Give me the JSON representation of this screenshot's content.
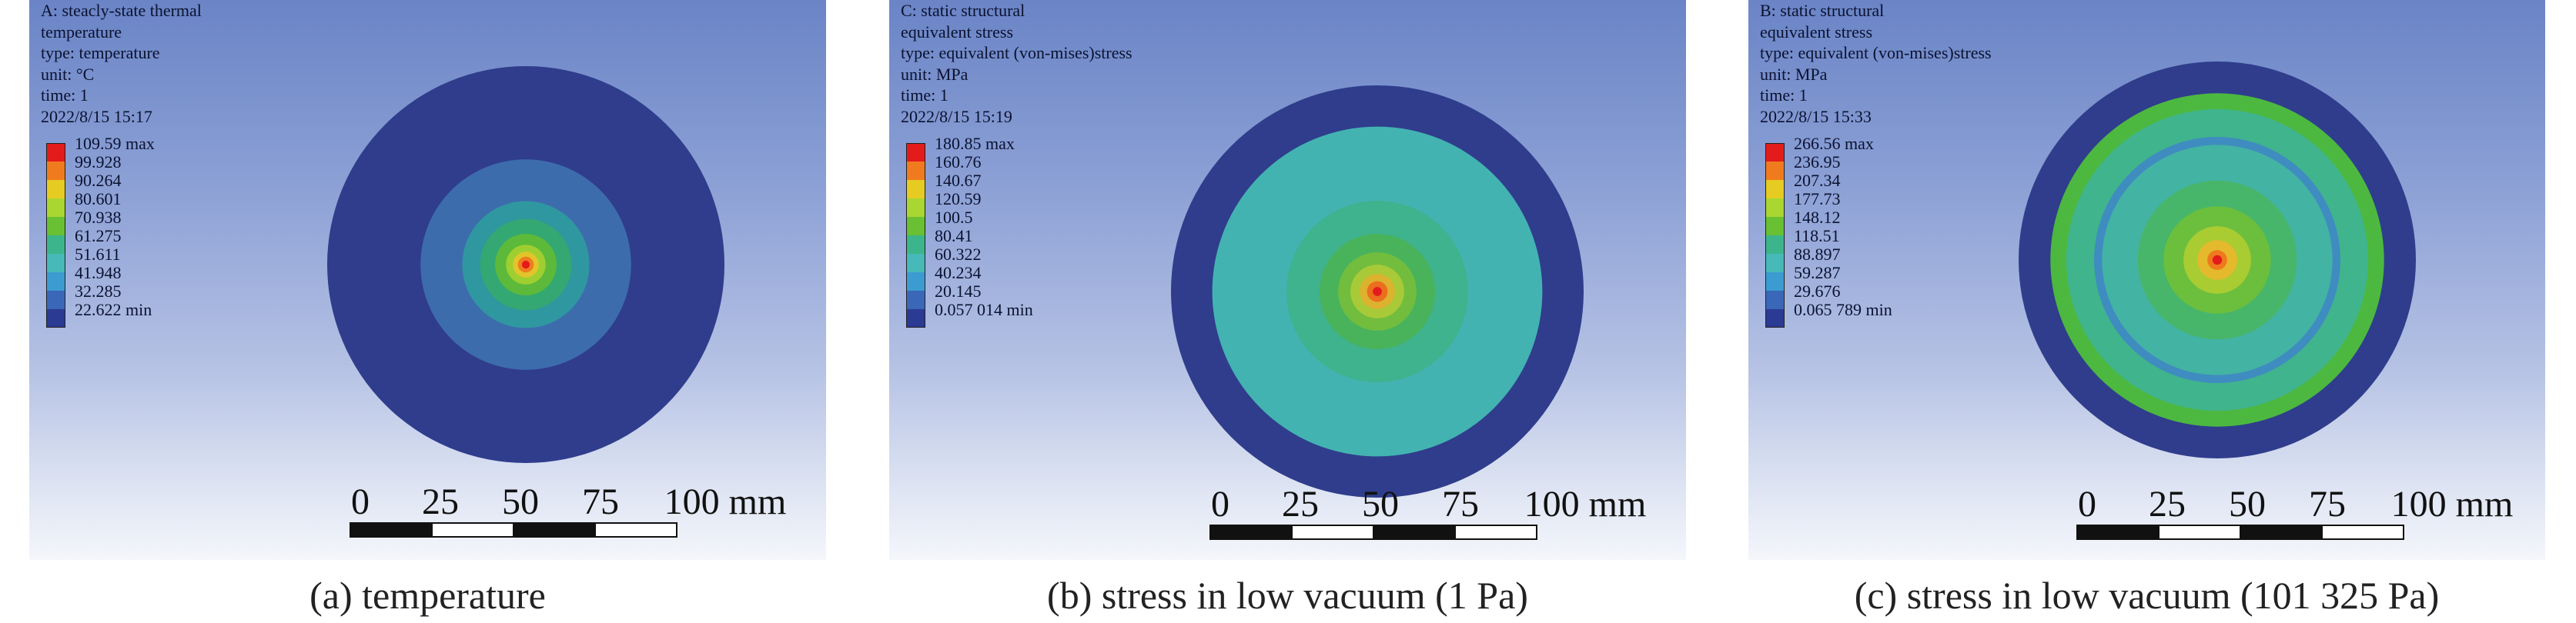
{
  "panels": [
    {
      "info": [
        "A: steacly-state thermal",
        "temperature",
        "type: temperature",
        "unit: °C",
        "time: 1",
        "2022/8/15 15:17"
      ],
      "legend": {
        "labels": [
          "109.59 max",
          "99.928",
          "90.264",
          "80.601",
          "70.938",
          "61.275",
          "51.611",
          "41.948",
          "32.285",
          "22.622 min"
        ],
        "colors": [
          "#e41b1b",
          "#f07b1e",
          "#e6cc22",
          "#a9d631",
          "#68c032",
          "#3cb58c",
          "#46b9b8",
          "#3c9bd1",
          "#3a67b8",
          "#2b3a92"
        ]
      },
      "disc": {
        "rings": [
          "#2f3d8c",
          "#3d6cad",
          "#2f97a0",
          "#33a872",
          "#5cb93a",
          "#9fce30",
          "#e1c52b",
          "#ef7d1f",
          "#e41b1b"
        ],
        "ring_radius_fraction": [
          1.0,
          0.53,
          0.32,
          0.23,
          0.155,
          0.1,
          0.065,
          0.04,
          0.02
        ]
      },
      "scale": {
        "ticks": [
          "0",
          "25",
          "50",
          "75",
          "100 mm"
        ]
      },
      "caption": "(a) temperature"
    },
    {
      "info": [
        "C: static structural",
        "equivalent stress",
        "type: equivalent (von-mises)stress",
        "unit: MPa",
        "time: 1",
        "2022/8/15 15:19"
      ],
      "legend": {
        "labels": [
          "180.85 max",
          "160.76",
          "140.67",
          "120.59",
          "100.5",
          "80.41",
          "60.322",
          "40.234",
          "20.145",
          "0.057 014 min"
        ],
        "colors": [
          "#e41b1b",
          "#f07b1e",
          "#e6cc22",
          "#a9d631",
          "#68c032",
          "#3cb58c",
          "#46b9b8",
          "#3c9bd1",
          "#3a67b8",
          "#2b3a92"
        ]
      },
      "disc": {
        "rings": [
          "#2f3d8c",
          "#43b3b1",
          "#3fb28e",
          "#49b35c",
          "#72bd3e",
          "#a9ca38",
          "#dcb22e",
          "#ec6e1f",
          "#e41b1b"
        ],
        "ring_radius_fraction": [
          1.0,
          0.8,
          0.44,
          0.28,
          0.19,
          0.13,
          0.085,
          0.05,
          0.022
        ]
      },
      "scale": {
        "ticks": [
          "0",
          "25",
          "50",
          "75",
          "100 mm"
        ]
      },
      "caption": "(b) stress in low vacuum (1 Pa)"
    },
    {
      "info": [
        "B: static structural",
        "equivalent stress",
        "type: equivalent (von-mises)stress",
        "unit: MPa",
        "time: 1",
        "2022/8/15 15:33"
      ],
      "legend": {
        "labels": [
          "266.56 max",
          "236.95",
          "207.34",
          "177.73",
          "148.12",
          "118.51",
          "88.897",
          "59.287",
          "29.676",
          "0.065 789 min"
        ],
        "colors": [
          "#e41b1b",
          "#f07b1e",
          "#e6cc22",
          "#a9d631",
          "#68c032",
          "#3cb58c",
          "#46b9b8",
          "#3c9bd1",
          "#3a67b8",
          "#2b3a92"
        ]
      },
      "disc": {
        "rings": [
          "#2f3d8c",
          "#4cb840",
          "#40b48c",
          "#3f8cc0",
          "#43b3a3",
          "#47b66a",
          "#6cbf3c",
          "#a9cc33",
          "#e4b92c",
          "#ee7a1e",
          "#e41b1b"
        ],
        "ring_radius_fraction": [
          1.0,
          0.84,
          0.76,
          0.62,
          0.58,
          0.4,
          0.27,
          0.17,
          0.1,
          0.05,
          0.024
        ]
      },
      "scale": {
        "ticks": [
          "0",
          "25",
          "50",
          "75",
          "100 mm"
        ]
      },
      "caption": "(c) stress in low vacuum (101 325 Pa)"
    }
  ]
}
